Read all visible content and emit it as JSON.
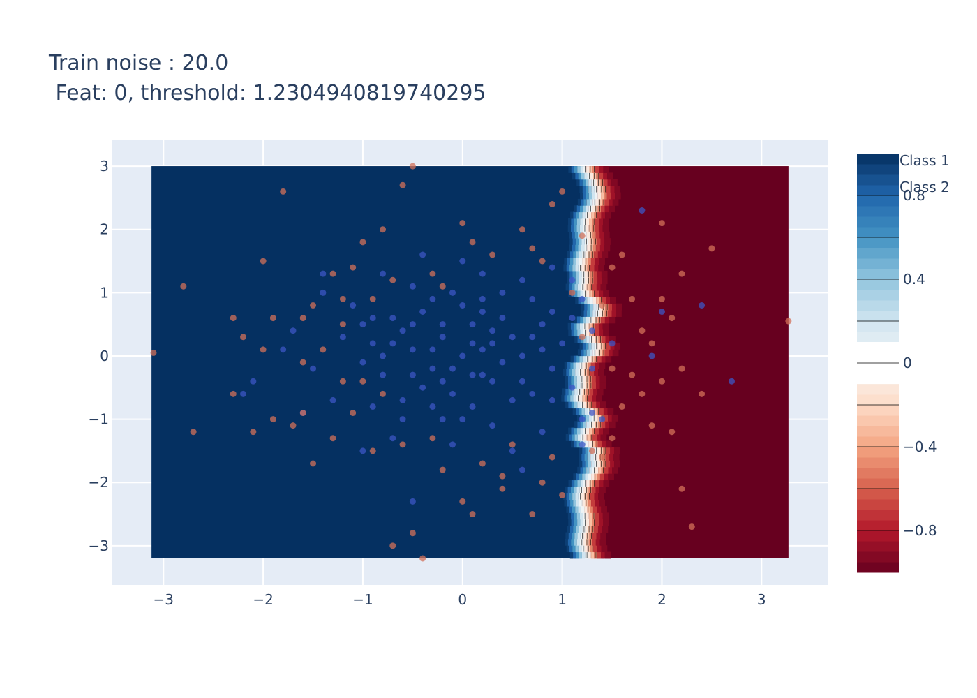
{
  "chart_data": {
    "type": "scatter",
    "title_line1": "Train noise : 20.0",
    "title_line2": " Feat: 0, threshold: 1.2304940819740295",
    "xlabel": "",
    "ylabel": "",
    "xlim": [
      -3.52,
      3.67
    ],
    "ylim": [
      -3.62,
      3.42
    ],
    "x_ticks": [
      -3,
      -2,
      -1,
      0,
      1,
      2,
      3
    ],
    "y_ticks": [
      -3,
      -2,
      -1,
      0,
      1,
      2,
      3
    ],
    "x_tick_labels": [
      "−3",
      "−2",
      "−1",
      "0",
      "1",
      "2",
      "3"
    ],
    "y_tick_labels": [
      "−3",
      "−2",
      "−1",
      "0",
      "1",
      "2",
      "3"
    ],
    "grid": true,
    "contour": {
      "x_range": [
        -3.12,
        3.27
      ],
      "y_range": [
        -3.2,
        3.0
      ],
      "threshold": 1.2304940819740295,
      "value_range": [
        -1,
        1
      ],
      "colorscale": "RdBu",
      "left_region_value": 1,
      "right_region_value": -1
    },
    "colorbar": {
      "ticks": [
        0.8,
        0.4,
        0,
        -0.4,
        -0.8
      ],
      "tick_labels": [
        "0.8",
        "0.4",
        "0",
        "−0.4",
        "−0.8"
      ]
    },
    "legend": {
      "placement": "top-right",
      "entries": [
        "Class 1",
        "Class 2"
      ]
    },
    "series": [
      {
        "name": "Class 1",
        "color": "#3c55c4",
        "points": [
          [
            -0.6,
            0.4
          ],
          [
            -0.5,
            0.1
          ],
          [
            -0.3,
            -0.2
          ],
          [
            -0.2,
            0.3
          ],
          [
            0.0,
            0.0
          ],
          [
            0.1,
            0.2
          ],
          [
            0.2,
            -0.3
          ],
          [
            0.3,
            0.4
          ],
          [
            0.4,
            -0.1
          ],
          [
            0.5,
            0.3
          ],
          [
            -0.4,
            -0.5
          ],
          [
            -0.1,
            -0.6
          ],
          [
            0.2,
            0.7
          ],
          [
            0.6,
            -0.4
          ],
          [
            -0.7,
            0.2
          ],
          [
            0.8,
            0.5
          ],
          [
            -0.8,
            -0.3
          ],
          [
            0.0,
            0.8
          ],
          [
            0.1,
            -0.8
          ],
          [
            -0.3,
            0.9
          ],
          [
            0.4,
            1.0
          ],
          [
            -0.5,
            1.1
          ],
          [
            0.7,
            0.9
          ],
          [
            -0.9,
            0.6
          ],
          [
            0.9,
            -0.7
          ],
          [
            -1.0,
            -0.1
          ],
          [
            1.0,
            0.2
          ],
          [
            -0.2,
            -1.0
          ],
          [
            0.3,
            -1.1
          ],
          [
            -0.6,
            -1.0
          ],
          [
            0.6,
            1.2
          ],
          [
            -1.1,
            0.8
          ],
          [
            1.1,
            -0.5
          ],
          [
            -0.8,
            1.3
          ],
          [
            0.8,
            -1.2
          ],
          [
            0.0,
            1.5
          ],
          [
            -0.4,
            1.6
          ],
          [
            0.5,
            -1.5
          ],
          [
            -1.3,
            -0.7
          ],
          [
            1.2,
            0.9
          ],
          [
            -1.2,
            0.3
          ],
          [
            1.3,
            -0.2
          ],
          [
            -0.1,
            -1.4
          ],
          [
            0.2,
            1.3
          ],
          [
            -0.7,
            -1.3
          ],
          [
            0.9,
            1.4
          ],
          [
            -1.4,
            1.0
          ],
          [
            1.1,
            0.6
          ],
          [
            -1.5,
            -0.2
          ],
          [
            1.2,
            -1.0
          ],
          [
            -0.3,
            0.1
          ],
          [
            0.2,
            0.1
          ],
          [
            -0.1,
            -0.2
          ],
          [
            0.4,
            0.6
          ],
          [
            -0.6,
            -0.7
          ],
          [
            0.7,
            -0.6
          ],
          [
            -0.9,
            -0.8
          ],
          [
            0.3,
            0.2
          ],
          [
            -0.2,
            0.5
          ],
          [
            0.6,
            0.0
          ],
          [
            -0.5,
            -0.3
          ],
          [
            0.1,
            0.5
          ],
          [
            -0.4,
            0.7
          ],
          [
            0.5,
            -0.7
          ],
          [
            -0.8,
            0.0
          ],
          [
            0.8,
            0.1
          ],
          [
            -0.1,
            1.0
          ],
          [
            0.0,
            -1.0
          ],
          [
            0.9,
            -0.2
          ],
          [
            -1.0,
            0.5
          ],
          [
            1.3,
            0.4
          ],
          [
            1.1,
            1.2
          ],
          [
            -1.6,
            -0.9
          ],
          [
            -1.7,
            0.4
          ],
          [
            1.2,
            -1.4
          ],
          [
            -1.0,
            -1.5
          ],
          [
            0.6,
            -1.8
          ],
          [
            -0.5,
            -2.3
          ],
          [
            1.4,
            -1.0
          ],
          [
            -2.1,
            -0.4
          ],
          [
            -2.2,
            -0.6
          ],
          [
            -1.4,
            1.3
          ],
          [
            -1.8,
            0.1
          ],
          [
            1.8,
            2.3
          ],
          [
            2.0,
            0.7
          ],
          [
            1.9,
            0.0
          ],
          [
            2.4,
            0.8
          ],
          [
            2.7,
            -0.4
          ],
          [
            1.5,
            0.2
          ],
          [
            1.3,
            -0.9
          ],
          [
            -0.2,
            -0.4
          ],
          [
            0.3,
            -0.4
          ],
          [
            -0.7,
            0.6
          ],
          [
            0.7,
            0.3
          ],
          [
            -0.3,
            -0.8
          ],
          [
            0.1,
            -0.3
          ],
          [
            -0.5,
            0.5
          ],
          [
            0.2,
            0.9
          ],
          [
            -0.9,
            0.2
          ],
          [
            0.9,
            0.7
          ]
        ]
      },
      {
        "name": "Class 2",
        "color": "#d2705a",
        "points": [
          [
            -3.1,
            0.05
          ],
          [
            -2.8,
            1.1
          ],
          [
            -2.7,
            -1.2
          ],
          [
            -2.3,
            -0.6
          ],
          [
            -2.2,
            0.3
          ],
          [
            -2.0,
            1.5
          ],
          [
            -1.9,
            -1.0
          ],
          [
            -1.8,
            2.6
          ],
          [
            -1.6,
            0.6
          ],
          [
            -1.5,
            -1.7
          ],
          [
            -1.4,
            0.1
          ],
          [
            -1.3,
            -1.3
          ],
          [
            -1.2,
            0.9
          ],
          [
            -1.1,
            -0.9
          ],
          [
            -1.0,
            1.8
          ],
          [
            -0.9,
            -1.5
          ],
          [
            -0.8,
            2.0
          ],
          [
            -0.7,
            -3.0
          ],
          [
            -0.6,
            2.7
          ],
          [
            -0.5,
            3.0
          ],
          [
            -0.5,
            -2.8
          ],
          [
            -0.4,
            -3.2
          ],
          [
            -0.3,
            1.3
          ],
          [
            -0.2,
            -1.8
          ],
          [
            0.0,
            2.1
          ],
          [
            0.0,
            -2.3
          ],
          [
            0.1,
            -2.5
          ],
          [
            0.3,
            1.6
          ],
          [
            0.4,
            -1.9
          ],
          [
            0.6,
            2.0
          ],
          [
            0.7,
            -2.5
          ],
          [
            0.8,
            1.5
          ],
          [
            0.9,
            -1.6
          ],
          [
            0.9,
            2.4
          ],
          [
            1.0,
            -2.2
          ],
          [
            1.0,
            2.6
          ],
          [
            1.2,
            0.3
          ],
          [
            1.3,
            -1.5
          ],
          [
            1.4,
            0.8
          ],
          [
            1.5,
            -1.3
          ],
          [
            1.6,
            1.6
          ],
          [
            1.7,
            -0.3
          ],
          [
            1.8,
            0.4
          ],
          [
            1.9,
            -1.1
          ],
          [
            2.0,
            2.1
          ],
          [
            2.0,
            -0.4
          ],
          [
            2.1,
            0.6
          ],
          [
            2.1,
            -1.2
          ],
          [
            2.2,
            1.3
          ],
          [
            2.2,
            -2.1
          ],
          [
            2.3,
            -2.7
          ],
          [
            2.4,
            -0.6
          ],
          [
            2.5,
            1.7
          ],
          [
            3.27,
            0.55
          ],
          [
            -2.0,
            0.1
          ],
          [
            -1.7,
            -1.1
          ],
          [
            -1.6,
            -0.9
          ],
          [
            -1.2,
            -0.4
          ],
          [
            -1.0,
            -0.4
          ],
          [
            -0.8,
            -0.6
          ],
          [
            -2.3,
            0.6
          ],
          [
            -2.1,
            -1.2
          ],
          [
            -1.9,
            0.6
          ],
          [
            -1.5,
            0.8
          ],
          [
            -1.3,
            1.3
          ],
          [
            -1.1,
            1.4
          ],
          [
            -0.7,
            1.2
          ],
          [
            -0.3,
            -1.3
          ],
          [
            0.2,
            -1.7
          ],
          [
            0.5,
            -1.4
          ],
          [
            0.7,
            1.7
          ],
          [
            1.1,
            1.0
          ],
          [
            1.4,
            -1.6
          ],
          [
            1.5,
            1.4
          ],
          [
            1.6,
            -0.8
          ],
          [
            1.7,
            0.9
          ],
          [
            1.8,
            -0.6
          ],
          [
            1.9,
            0.2
          ],
          [
            2.0,
            0.9
          ],
          [
            2.2,
            -0.2
          ],
          [
            -1.6,
            -0.1
          ],
          [
            -1.2,
            0.5
          ],
          [
            -0.9,
            0.9
          ],
          [
            -0.6,
            -1.4
          ],
          [
            -0.2,
            1.1
          ],
          [
            0.1,
            1.8
          ],
          [
            0.4,
            -2.1
          ],
          [
            0.8,
            -2.0
          ],
          [
            1.2,
            1.9
          ],
          [
            1.5,
            -0.2
          ]
        ]
      }
    ]
  }
}
